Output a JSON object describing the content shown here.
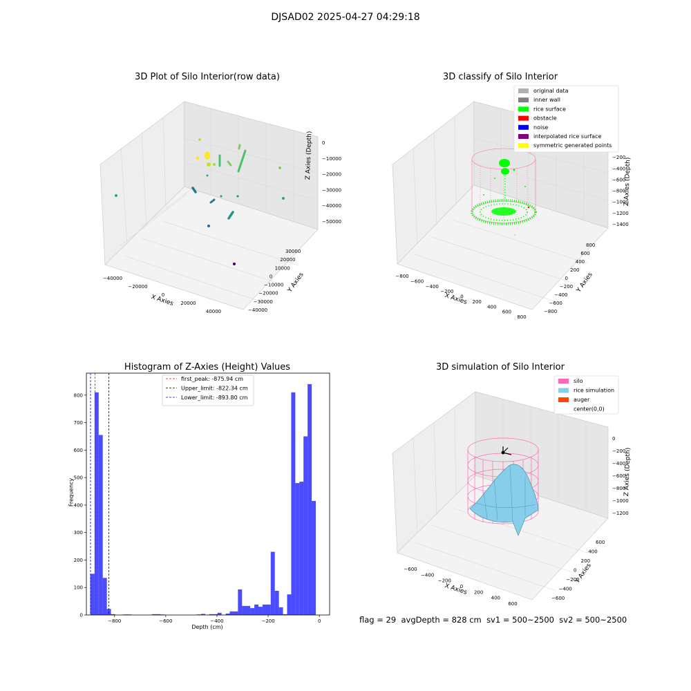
{
  "suptitle": "DJSAD02 2025-04-27 04:29:18",
  "footer": {
    "flag": "flag = 29",
    "avg_depth": "avgDepth = 828 cm",
    "sv1": "sv1 = 500~2500",
    "sv2": "sv2 = 500~2500"
  },
  "panels": {
    "raw": {
      "title": "3D Plot of Silo Interior(row data)",
      "xlabel": "X Axies",
      "ylabel": "Y Axies",
      "zlabel": "Z Axies (Depth)",
      "x_ticks": [
        "−40000",
        "−20000",
        "0",
        "20000",
        "40000"
      ],
      "y_ticks": [
        "30000",
        "20000",
        "10000",
        "0",
        "−10000",
        "−20000",
        "−30000",
        "−40000"
      ],
      "z_ticks": [
        "0",
        "−10000",
        "−20000",
        "−30000",
        "−40000",
        "−50000"
      ]
    },
    "classify": {
      "title": "3D classify of Silo Interior",
      "xlabel": "X Axies",
      "ylabel": "Y Axies",
      "zlabel": "Z Axies (Depth)",
      "x_ticks": [
        "−800",
        "−600",
        "−400",
        "−200",
        "0",
        "200",
        "400",
        "600",
        "800"
      ],
      "y_ticks": [
        "800",
        "600",
        "400",
        "200",
        "0",
        "−200",
        "−400",
        "−600",
        "−800"
      ],
      "z_ticks": [
        "0",
        "−200",
        "−400",
        "−600",
        "−800",
        "−1000",
        "−1200",
        "−1400"
      ],
      "legend": [
        {
          "label": "original data",
          "color": "#b0b0b0"
        },
        {
          "label": "inner wall",
          "color": "#808080"
        },
        {
          "label": "rice surface",
          "color": "#00ff00"
        },
        {
          "label": "obstacle",
          "color": "#ff0000"
        },
        {
          "label": "noise",
          "color": "#0000ff"
        },
        {
          "label": "interpolated rice surface",
          "color": "#800080"
        },
        {
          "label": "symmetric generated points",
          "color": "#ffff00"
        }
      ]
    },
    "simulation": {
      "title": "3D simulation of Silo Interior",
      "xlabel": "X Axies",
      "ylabel": "Y Axies",
      "zlabel": "Z Axies (Depth)",
      "x_ticks": [
        "−600",
        "−400",
        "−200",
        "0",
        "200",
        "400",
        "600"
      ],
      "y_ticks": [
        "600",
        "400",
        "200",
        "0",
        "−200",
        "−400",
        "−600"
      ],
      "z_ticks": [
        "0",
        "−200",
        "−400",
        "−600",
        "−800",
        "−1000",
        "−1200"
      ],
      "legend": [
        {
          "label": "silo",
          "color": "#ff69b4"
        },
        {
          "label": "rice simulation",
          "color": "#87ceeb"
        },
        {
          "label": "auger",
          "color": "#ff4500"
        },
        {
          "label": "center(0,0)",
          "color": ""
        }
      ]
    }
  },
  "chart_data": {
    "type": "bar",
    "title": "Histogram of Z-Axies (Height) Values",
    "xlabel": "Depth (cm)",
    "ylabel": "Frequency",
    "xlim": [
      -910,
      40
    ],
    "ylim": [
      0,
      880
    ],
    "x_ticks": [
      -800,
      -600,
      -400,
      -200,
      0
    ],
    "y_ticks": [
      0,
      100,
      200,
      300,
      400,
      500,
      600,
      700,
      800
    ],
    "bar_color": "#0000ff",
    "bins": [
      {
        "x0": -895,
        "x1": -878,
        "value": 150
      },
      {
        "x0": -878,
        "x1": -862,
        "value": 810
      },
      {
        "x0": -862,
        "x1": -846,
        "value": 655
      },
      {
        "x0": -846,
        "x1": -830,
        "value": 135
      },
      {
        "x0": -830,
        "x1": -814,
        "value": 22
      },
      {
        "x0": -814,
        "x1": -798,
        "value": 3
      },
      {
        "x0": -766,
        "x1": -734,
        "value": 2
      },
      {
        "x0": -654,
        "x1": -622,
        "value": 3
      },
      {
        "x0": -622,
        "x1": -606,
        "value": 2
      },
      {
        "x0": -478,
        "x1": -462,
        "value": 2
      },
      {
        "x0": -462,
        "x1": -446,
        "value": 4
      },
      {
        "x0": -430,
        "x1": -398,
        "value": 3
      },
      {
        "x0": -398,
        "x1": -382,
        "value": 8
      },
      {
        "x0": -366,
        "x1": -350,
        "value": 5
      },
      {
        "x0": -350,
        "x1": -318,
        "value": 13
      },
      {
        "x0": -318,
        "x1": -302,
        "value": 93
      },
      {
        "x0": -302,
        "x1": -270,
        "value": 33
      },
      {
        "x0": -270,
        "x1": -254,
        "value": 25
      },
      {
        "x0": -254,
        "x1": -238,
        "value": 38
      },
      {
        "x0": -238,
        "x1": -222,
        "value": 30
      },
      {
        "x0": -222,
        "x1": -190,
        "value": 38
      },
      {
        "x0": -190,
        "x1": -174,
        "value": 230
      },
      {
        "x0": -174,
        "x1": -158,
        "value": 88
      },
      {
        "x0": -158,
        "x1": -142,
        "value": 28
      },
      {
        "x0": -142,
        "x1": -126,
        "value": 3
      },
      {
        "x0": -126,
        "x1": -110,
        "value": 75
      },
      {
        "x0": -110,
        "x1": -94,
        "value": 810
      },
      {
        "x0": -94,
        "x1": -78,
        "value": 480
      },
      {
        "x0": -78,
        "x1": -62,
        "value": 485
      },
      {
        "x0": -62,
        "x1": -46,
        "value": 650
      },
      {
        "x0": -46,
        "x1": -30,
        "value": 840
      },
      {
        "x0": -30,
        "x1": -14,
        "value": 415
      }
    ],
    "vlines": [
      {
        "x": -875.94,
        "color": "#ff0000",
        "label": "first_peak: -875.94 cm"
      },
      {
        "x": -822.34,
        "color": "#00008b",
        "label": "Upper_limit: -822.34 cm"
      },
      {
        "x": -893.8,
        "color": "#0000cd",
        "label": "Lower_limit: -893.80 cm"
      }
    ]
  }
}
